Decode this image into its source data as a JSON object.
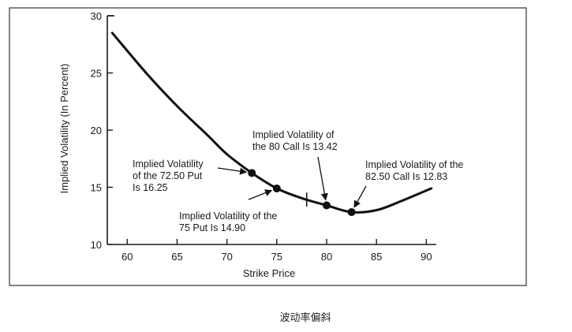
{
  "chart_data": {
    "type": "line",
    "title": "",
    "xlabel": "Strike Price",
    "ylabel": "Implied Volatility (In Percent)",
    "xlim": [
      58,
      91
    ],
    "ylim": [
      10,
      30
    ],
    "x_ticks": [
      60,
      65,
      70,
      75,
      80,
      85,
      90
    ],
    "y_ticks": [
      10,
      15,
      20,
      25,
      30
    ],
    "grid": false,
    "series": [
      {
        "x": [
          58.5,
          62,
          65,
          68,
          70,
          72.5,
          75,
          77.5,
          80,
          82.5,
          85,
          87.5,
          90.5
        ],
        "y": [
          28.5,
          24.9,
          22.1,
          19.6,
          17.9,
          16.25,
          14.9,
          14.05,
          13.42,
          12.83,
          13.0,
          13.8,
          14.9
        ]
      }
    ],
    "marked_points": [
      {
        "x": 72.5,
        "y": 16.25
      },
      {
        "x": 75,
        "y": 14.9
      },
      {
        "x": 80,
        "y": 13.42
      },
      {
        "x": 82.5,
        "y": 12.83
      }
    ],
    "tick_mark_x": 78,
    "annotations": [
      {
        "lines": [
          "Implied Volatility",
          "of the 72.50 Put",
          "Is 16.25"
        ],
        "point_index": 0
      },
      {
        "lines": [
          "Implied Volatility of the",
          "75 Put Is 14.90"
        ],
        "point_index": 1
      },
      {
        "lines": [
          "Implied Volatility of",
          "the 80 Call Is 13.42"
        ],
        "point_index": 2
      },
      {
        "lines": [
          "Implied Volatility of the",
          "82.50 Call Is 12.83"
        ],
        "point_index": 3
      }
    ]
  },
  "caption": "波动率偏斜",
  "colors": {
    "line": "#111111",
    "frame": "#333333",
    "text": "#1a1a1a"
  }
}
